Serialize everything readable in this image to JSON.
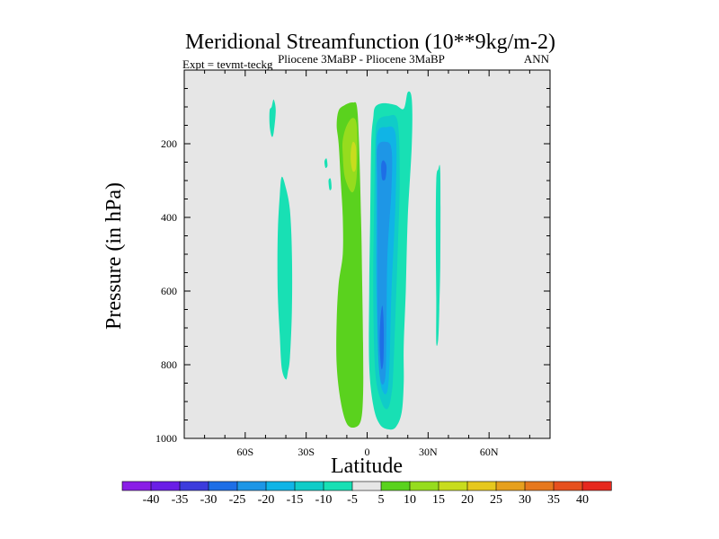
{
  "chart_data": {
    "type": "filled-contour",
    "title": "Meridional Streamfunction (10**9kg/m-2)",
    "subtitle_left": "Expt = tevmt-teckg",
    "subtitle_center": "Pliocene   3MaBP - Pliocene   3MaBP",
    "subtitle_right": "ANN",
    "xlabel": "Latitude",
    "ylabel": "Pressure (in hPa)",
    "xlim": [
      -90,
      90
    ],
    "ylim": [
      1000,
      0
    ],
    "x_ticks": [
      {
        "value": -60,
        "label": "60S"
      },
      {
        "value": -30,
        "label": "30S"
      },
      {
        "value": 0,
        "label": "0"
      },
      {
        "value": 30,
        "label": "30N"
      },
      {
        "value": 60,
        "label": "60N"
      }
    ],
    "y_ticks": [
      {
        "value": 200,
        "label": "200"
      },
      {
        "value": 400,
        "label": "400"
      },
      {
        "value": 600,
        "label": "600"
      },
      {
        "value": 800,
        "label": "800"
      },
      {
        "value": 1000,
        "label": "1000"
      }
    ],
    "background_color": "#e6e6e6",
    "colorbar": {
      "labels": [
        "-40",
        "-35",
        "-30",
        "-25",
        "-20",
        "-15",
        "-10",
        "-5",
        "5",
        "10",
        "15",
        "20",
        "25",
        "30",
        "35",
        "40"
      ],
      "colors": [
        "#8a1ee6",
        "#6a1ee6",
        "#3c3cdc",
        "#1e6ee6",
        "#1e96e6",
        "#10b4e6",
        "#10ccc8",
        "#18e0b4",
        "#e6e6e6",
        "#5ad21e",
        "#96dc1e",
        "#c8dc1e",
        "#e6c81e",
        "#e6a01e",
        "#e6781e",
        "#e6501e",
        "#e6281e"
      ]
    },
    "regions": [
      {
        "name": "sh-cell-thin",
        "level": -5,
        "color": "#18e0b4",
        "points": [
          [
            -47,
            100
          ],
          [
            -46,
            80
          ],
          [
            -45,
            110
          ],
          [
            -46,
            170
          ],
          [
            -47,
            180
          ],
          [
            -48,
            150
          ],
          [
            -48,
            110
          ]
        ]
      },
      {
        "name": "sh-cell-mid",
        "level": -5,
        "color": "#18e0b4",
        "points": [
          [
            -42,
            290
          ],
          [
            -40,
            320
          ],
          [
            -38,
            380
          ],
          [
            -37,
            500
          ],
          [
            -37,
            650
          ],
          [
            -38,
            780
          ],
          [
            -39,
            820
          ],
          [
            -40,
            840
          ],
          [
            -42,
            810
          ],
          [
            -43,
            720
          ],
          [
            -44,
            600
          ],
          [
            -44,
            450
          ],
          [
            -43,
            340
          ]
        ]
      },
      {
        "name": "small-blob-1",
        "level": -5,
        "color": "#18e0b4",
        "points": [
          [
            -21,
            248
          ],
          [
            -20,
            240
          ],
          [
            -19.5,
            260
          ],
          [
            -20.5,
            265
          ]
        ]
      },
      {
        "name": "small-blob-2",
        "level": -5,
        "color": "#18e0b4",
        "points": [
          [
            -19,
            300
          ],
          [
            -18,
            295
          ],
          [
            -17.5,
            320
          ],
          [
            -18.5,
            325
          ]
        ]
      },
      {
        "name": "nh-thin",
        "level": -5,
        "color": "#18e0b4",
        "points": [
          [
            34,
            300
          ],
          [
            35,
            270
          ],
          [
            36,
            280
          ],
          [
            36,
            520
          ],
          [
            35.5,
            650
          ],
          [
            35,
            730
          ],
          [
            34,
            740
          ],
          [
            34,
            620
          ],
          [
            33.8,
            460
          ]
        ]
      },
      {
        "name": "positive-cell",
        "level": 5,
        "color": "#5ad21e",
        "points": [
          [
            -15,
            150
          ],
          [
            -14,
            110
          ],
          [
            -11,
            95
          ],
          [
            -7,
            88
          ],
          [
            -5,
            100
          ],
          [
            -4,
            200
          ],
          [
            -3,
            400
          ],
          [
            -2.5,
            550
          ],
          [
            -2,
            750
          ],
          [
            -2,
            880
          ],
          [
            -3,
            950
          ],
          [
            -6,
            970
          ],
          [
            -10,
            960
          ],
          [
            -13,
            900
          ],
          [
            -15,
            800
          ],
          [
            -15,
            680
          ],
          [
            -14,
            580
          ],
          [
            -12,
            500
          ],
          [
            -12,
            400
          ],
          [
            -13,
            300
          ],
          [
            -14,
            200
          ]
        ]
      },
      {
        "name": "positive-core",
        "level": 10,
        "color": "#96dc1e",
        "points": [
          [
            -12,
            190
          ],
          [
            -10,
            150
          ],
          [
            -7,
            130
          ],
          [
            -5,
            155
          ],
          [
            -5,
            270
          ],
          [
            -6,
            320
          ],
          [
            -8,
            330
          ],
          [
            -11,
            290
          ],
          [
            -12,
            230
          ]
        ]
      },
      {
        "name": "positive-peak",
        "level": 15,
        "color": "#c8dc1e",
        "points": [
          [
            -8,
            220
          ],
          [
            -7,
            195
          ],
          [
            -5.5,
            210
          ],
          [
            -5.5,
            265
          ],
          [
            -7,
            275
          ],
          [
            -8,
            250
          ]
        ]
      },
      {
        "name": "negative-cell",
        "level": -5,
        "color": "#18e0b4",
        "points": [
          [
            4,
            100
          ],
          [
            8,
            90
          ],
          [
            14,
            95
          ],
          [
            18,
            105
          ],
          [
            20,
            60
          ],
          [
            22,
            80
          ],
          [
            22,
            200
          ],
          [
            20,
            400
          ],
          [
            19,
            600
          ],
          [
            18,
            750
          ],
          [
            18,
            850
          ],
          [
            17,
            930
          ],
          [
            14,
            970
          ],
          [
            10,
            975
          ],
          [
            6,
            960
          ],
          [
            3,
            910
          ],
          [
            1,
            800
          ],
          [
            1,
            600
          ],
          [
            1.5,
            400
          ],
          [
            2,
            200
          ],
          [
            3,
            130
          ]
        ]
      },
      {
        "name": "negative-10",
        "level": -10,
        "color": "#10ccc8",
        "points": [
          [
            5,
            140
          ],
          [
            10,
            125
          ],
          [
            15,
            140
          ],
          [
            16,
            300
          ],
          [
            15,
            500
          ],
          [
            13,
            800
          ],
          [
            12,
            880
          ],
          [
            10,
            920
          ],
          [
            7,
            900
          ],
          [
            4,
            820
          ],
          [
            3,
            600
          ],
          [
            3.5,
            350
          ],
          [
            4,
            200
          ]
        ]
      },
      {
        "name": "negative-15",
        "level": -15,
        "color": "#10b4e6",
        "points": [
          [
            5,
            170
          ],
          [
            9,
            155
          ],
          [
            14,
            175
          ],
          [
            14,
            350
          ],
          [
            12,
            600
          ],
          [
            11,
            800
          ],
          [
            10,
            870
          ],
          [
            8,
            875
          ],
          [
            6,
            820
          ],
          [
            4.5,
            600
          ],
          [
            4.5,
            350
          ],
          [
            4.5,
            250
          ]
        ]
      },
      {
        "name": "negative-20",
        "level": -20,
        "color": "#1e96e6",
        "points": [
          [
            5,
            210
          ],
          [
            9,
            195
          ],
          [
            12,
            215
          ],
          [
            12,
            320
          ],
          [
            10,
            500
          ],
          [
            9.5,
            700
          ],
          [
            9,
            830
          ],
          [
            7,
            850
          ],
          [
            5.5,
            780
          ],
          [
            5,
            600
          ],
          [
            5,
            400
          ],
          [
            5,
            300
          ]
        ]
      },
      {
        "name": "negative-25-upper",
        "level": -25,
        "color": "#1e6ee6",
        "points": [
          [
            7,
            255
          ],
          [
            8,
            245
          ],
          [
            9.5,
            260
          ],
          [
            9,
            295
          ],
          [
            7.5,
            298
          ],
          [
            7,
            280
          ]
        ]
      },
      {
        "name": "negative-25-lower",
        "level": -25,
        "color": "#1e6ee6",
        "points": [
          [
            6.5,
            680
          ],
          [
            7.5,
            640
          ],
          [
            8.2,
            700
          ],
          [
            8,
            790
          ],
          [
            7,
            810
          ],
          [
            6.2,
            750
          ]
        ]
      }
    ]
  }
}
